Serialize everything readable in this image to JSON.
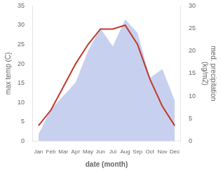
{
  "chart_data": {
    "type": "line",
    "categories": [
      "Jan",
      "Feb",
      "Mar",
      "Apr",
      "May",
      "Jun",
      "Jul",
      "Aug",
      "Sep",
      "Oct",
      "Nov",
      "Dec"
    ],
    "series": [
      {
        "type": "area",
        "color": "#b0bce8",
        "axis": "y2",
        "values": [
          1.5,
          7,
          10,
          13,
          20,
          25,
          21,
          27,
          24,
          14,
          16,
          9
        ]
      },
      {
        "type": "line",
        "color": "#c0392b",
        "values": [
          4,
          8,
          14,
          20,
          25,
          29,
          29,
          30,
          25,
          16,
          9,
          4
        ]
      }
    ],
    "x_label": "date (month)",
    "y_label": "max temp (C)",
    "y2_label": "med. precipitation\n(kg/m2)",
    "ylim": [
      0,
      35
    ],
    "yticks": [
      0,
      5,
      10,
      15,
      20,
      25,
      30,
      35
    ],
    "y2lim": [
      0,
      30
    ],
    "y2ticks": [
      0,
      5,
      10,
      15,
      20,
      25,
      30
    ],
    "grid": false
  }
}
